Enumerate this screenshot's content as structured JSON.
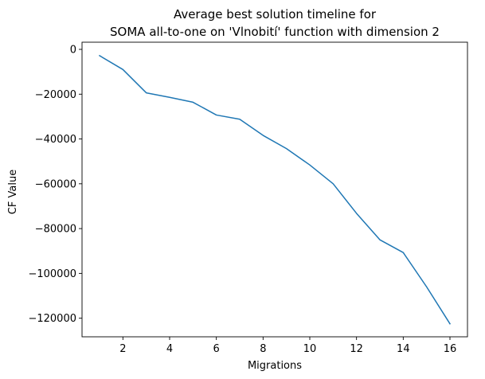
{
  "chart_data": {
    "type": "line",
    "title_lines": [
      "Average best solution timeline for",
      "SOMA all-to-one on 'Vlnobití' function with dimension 2"
    ],
    "xlabel": "Migrations",
    "ylabel": "CF Value",
    "xlim": [
      0.25,
      16.75
    ],
    "ylim": [
      -128300,
      3200
    ],
    "x_ticks": [
      2,
      4,
      6,
      8,
      10,
      12,
      14,
      16
    ],
    "x_tick_labels": [
      "2",
      "4",
      "6",
      "8",
      "10",
      "12",
      "14",
      "16"
    ],
    "y_ticks": [
      0,
      -20000,
      -40000,
      -60000,
      -80000,
      -100000,
      -120000
    ],
    "y_tick_labels": [
      "0",
      "−20000",
      "−40000",
      "−60000",
      "−80000",
      "−100000",
      "−120000"
    ],
    "grid": false,
    "series": [
      {
        "color": "#1f77b4",
        "x": [
          1,
          2,
          3,
          4,
          5,
          6,
          7,
          8,
          9,
          10,
          11,
          12,
          13,
          14,
          15,
          16
        ],
        "y": [
          -2800,
          -9000,
          -19400,
          -21400,
          -23600,
          -29300,
          -31200,
          -38400,
          -44300,
          -51600,
          -60000,
          -73200,
          -85000,
          -90700,
          -106000,
          -122500
        ]
      }
    ]
  }
}
